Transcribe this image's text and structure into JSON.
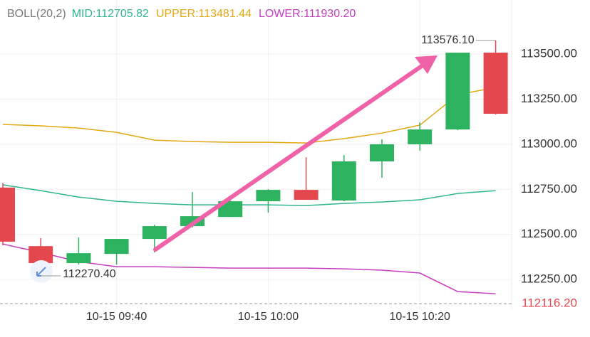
{
  "chart_data": {
    "type": "candlestick",
    "title": "BOLL(20,2)",
    "categories": [
      null,
      null,
      null,
      "10-15 09:40",
      null,
      null,
      null,
      "10-15 10:00",
      null,
      null,
      null,
      "10-15 10:20",
      null,
      null
    ],
    "open": [
      112760,
      112435,
      112341,
      112392,
      112475,
      112546,
      112597,
      112684,
      112747,
      112688,
      112905,
      113000,
      113082,
      113508
    ],
    "high": [
      112785,
      112479,
      112483,
      112475,
      112554,
      112735,
      112688,
      112751,
      112928,
      112940,
      113027,
      113121,
      113508,
      113576.1
    ],
    "low": [
      112440,
      112270.4,
      112333,
      112333,
      112400,
      112538,
      112597,
      112621,
      112692,
      112684,
      112814,
      112964,
      113078,
      113165
    ],
    "close": [
      112460,
      112341,
      112396,
      112475,
      112546,
      112601,
      112684,
      112747,
      112692,
      112905,
      113000,
      113082,
      113508,
      113169
    ],
    "up_color": "#2db35f",
    "down_color": "#e5474f",
    "series": [
      {
        "name": "MID:112705.82",
        "color": "#2fb58f",
        "values": [
          112775,
          112743,
          112707,
          112684,
          112672,
          112664,
          112664,
          112664,
          112660,
          112672,
          112680,
          112692,
          112727,
          112743
        ]
      },
      {
        "name": "UPPER:113481.44",
        "color": "#e2a812",
        "values": [
          113110,
          113102,
          113090,
          113066,
          113023,
          113015,
          113011,
          113011,
          113007,
          113031,
          113062,
          113106,
          113275,
          113315
        ]
      },
      {
        "name": "LOWER:111930.20",
        "color": "#c53cbf",
        "values": [
          112447,
          112400,
          112349,
          112321,
          112321,
          112317,
          112313,
          112313,
          112313,
          112309,
          112302,
          112286,
          112183,
          112171
        ]
      }
    ],
    "annotations": [
      "113576.10",
      "112270.40"
    ],
    "current_price": {
      "value": 112116.2,
      "label": "112116.20"
    },
    "ylim": [
      112085,
      113800
    ],
    "yticks": [
      {
        "value": 112250,
        "label": "112250.00"
      },
      {
        "value": 112500,
        "label": "112500.00"
      },
      {
        "value": 112750,
        "label": "112750.00"
      },
      {
        "value": 113000,
        "label": "113000.00"
      },
      {
        "value": 113250,
        "label": "113250.00"
      },
      {
        "value": 113500,
        "label": "113500.00"
      }
    ],
    "grid": true
  }
}
